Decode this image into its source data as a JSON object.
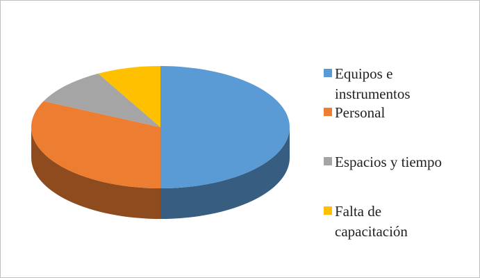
{
  "chart_data": {
    "type": "pie3d",
    "categories": [
      "Equipos e instrumentos",
      "Personal",
      "Espacios y tiempo",
      "Falta de capacitación"
    ],
    "values": [
      50,
      32,
      10,
      8
    ],
    "colors": [
      "#5b9bd5",
      "#ed7d31",
      "#a5a5a5",
      "#ffc000"
    ],
    "legend": "right"
  }
}
